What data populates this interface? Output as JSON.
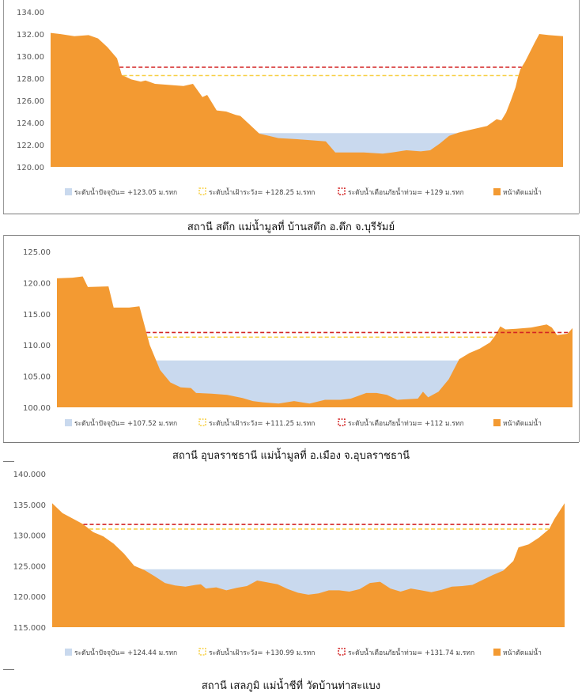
{
  "colors": {
    "terrain": "#f39a32",
    "water": "#c9d9ee",
    "warning": "#f7d046",
    "danger": "#d32424",
    "axis_text": "#555555"
  },
  "captions": [
    "สถานี สตึก แม่น้ำมูลที่ บ้านสตึก อ.ตึก จ.บุรีรัมย์",
    "สถานี อุบลราชธานี แม่น้ำมูลที่ อ.เมือง จ.อุบลราชธานี",
    "สถานี เสลภูมิ แม่น้ำชีที่ วัดบ้านท่าสะแบง"
  ],
  "chart_data": [
    {
      "type": "area",
      "yticks": [
        "134.00",
        "132.00",
        "130.00",
        "128.00",
        "126.00",
        "124.00",
        "122.00",
        "120.00"
      ],
      "ylim": [
        120,
        134
      ],
      "water_level": 123.05,
      "warning_level": 128.25,
      "danger_level": 129,
      "legend": [
        "ระดับน้ำปัจจุบัน= +123.05 ม.รทก",
        "ระดับน้ำเฝ้าระวัง= +128.25 ม.รทก",
        "ระดับน้ำเตือนภัยน้ำท่วม= +129 ม.รทก",
        "หน้าตัดแม่น้ำ"
      ],
      "profile": [
        [
          0,
          132.1
        ],
        [
          0.02,
          132.0
        ],
        [
          0.05,
          131.8
        ],
        [
          0.08,
          131.9
        ],
        [
          0.1,
          131.6
        ],
        [
          0.12,
          130.8
        ],
        [
          0.14,
          129.8
        ],
        [
          0.15,
          128.3
        ],
        [
          0.17,
          127.9
        ],
        [
          0.19,
          127.7
        ],
        [
          0.2,
          127.8
        ],
        [
          0.22,
          127.5
        ],
        [
          0.25,
          127.4
        ],
        [
          0.28,
          127.3
        ],
        [
          0.3,
          127.5
        ],
        [
          0.32,
          126.3
        ],
        [
          0.33,
          126.5
        ],
        [
          0.35,
          125.1
        ],
        [
          0.37,
          125.0
        ],
        [
          0.39,
          124.7
        ],
        [
          0.4,
          124.6
        ],
        [
          0.42,
          123.8
        ],
        [
          0.44,
          123.0
        ],
        [
          0.46,
          122.8
        ],
        [
          0.48,
          122.6
        ],
        [
          0.52,
          122.5
        ],
        [
          0.55,
          122.4
        ],
        [
          0.58,
          122.3
        ],
        [
          0.6,
          121.3
        ],
        [
          0.62,
          121.3
        ],
        [
          0.66,
          121.3
        ],
        [
          0.7,
          121.2
        ],
        [
          0.72,
          121.3
        ],
        [
          0.75,
          121.5
        ],
        [
          0.78,
          121.4
        ],
        [
          0.8,
          121.5
        ],
        [
          0.82,
          122.1
        ],
        [
          0.84,
          122.8
        ],
        [
          0.86,
          123.1
        ],
        [
          0.88,
          123.3
        ],
        [
          0.9,
          123.5
        ],
        [
          0.92,
          123.7
        ],
        [
          0.94,
          124.3
        ],
        [
          0.95,
          124.2
        ],
        [
          0.96,
          124.9
        ],
        [
          0.97,
          126.0
        ],
        [
          0.98,
          127.2
        ],
        [
          0.985,
          128.1
        ],
        [
          0.99,
          128.8
        ],
        [
          1.0,
          129.5
        ],
        [
          1.02,
          131.2
        ],
        [
          1.03,
          132.0
        ],
        [
          1.05,
          131.9
        ],
        [
          1.08,
          131.8
        ]
      ]
    },
    {
      "type": "area",
      "yticks": [
        "125.00",
        "120.00",
        "115.00",
        "110.00",
        "105.00",
        "100.00"
      ],
      "ylim": [
        100,
        125
      ],
      "water_level": 107.52,
      "warning_level": 111.25,
      "danger_level": 112,
      "legend": [
        "ระดับน้ำปัจจุบัน= +107.52 ม.รทก",
        "ระดับน้ำเฝ้าระวัง= +111.25 ม.รทก",
        "ระดับน้ำเตือนภัยน้ำท่วม= +112 ม.รทก",
        "หน้าตัดแม่น้ำ"
      ],
      "profile": [
        [
          0,
          120.7
        ],
        [
          0.03,
          120.8
        ],
        [
          0.05,
          121.0
        ],
        [
          0.06,
          119.3
        ],
        [
          0.1,
          119.4
        ],
        [
          0.11,
          116.0
        ],
        [
          0.14,
          116.0
        ],
        [
          0.16,
          116.2
        ],
        [
          0.18,
          110.0
        ],
        [
          0.2,
          106.0
        ],
        [
          0.22,
          104.0
        ],
        [
          0.24,
          103.2
        ],
        [
          0.26,
          103.1
        ],
        [
          0.27,
          102.3
        ],
        [
          0.3,
          102.2
        ],
        [
          0.33,
          102.0
        ],
        [
          0.36,
          101.5
        ],
        [
          0.38,
          101.0
        ],
        [
          0.4,
          100.8
        ],
        [
          0.43,
          100.6
        ],
        [
          0.46,
          101.0
        ],
        [
          0.49,
          100.6
        ],
        [
          0.52,
          101.2
        ],
        [
          0.55,
          101.2
        ],
        [
          0.57,
          101.4
        ],
        [
          0.6,
          102.3
        ],
        [
          0.62,
          102.3
        ],
        [
          0.64,
          102.0
        ],
        [
          0.66,
          101.2
        ],
        [
          0.7,
          101.4
        ],
        [
          0.71,
          102.5
        ],
        [
          0.72,
          101.6
        ],
        [
          0.74,
          102.5
        ],
        [
          0.76,
          104.5
        ],
        [
          0.78,
          107.7
        ],
        [
          0.8,
          108.7
        ],
        [
          0.82,
          109.4
        ],
        [
          0.84,
          110.4
        ],
        [
          0.85,
          111.5
        ],
        [
          0.86,
          113.0
        ],
        [
          0.87,
          112.5
        ],
        [
          0.89,
          112.6
        ],
        [
          0.92,
          112.8
        ],
        [
          0.95,
          113.3
        ],
        [
          0.96,
          112.8
        ],
        [
          0.97,
          111.6
        ],
        [
          0.99,
          111.8
        ],
        [
          1.0,
          112.7
        ]
      ]
    },
    {
      "type": "area",
      "yticks": [
        "140.000",
        "135.000",
        "130.000",
        "125.000",
        "120.000",
        "115.000"
      ],
      "ylim": [
        115,
        140
      ],
      "water_level": 124.44,
      "warning_level": 130.99,
      "danger_level": 131.74,
      "legend": [
        "ระดับน้ำปัจจุบัน= +124.44 ม.รทก",
        "ระดับน้ำเฝ้าระวัง= +130.99 ม.รทก",
        "ระดับน้ำเตือนภัยน้ำท่วม= +131.74 ม.รทก",
        "หน้าตัดแม่น้ำ"
      ],
      "profile": [
        [
          0,
          135.2
        ],
        [
          0.02,
          133.6
        ],
        [
          0.04,
          132.7
        ],
        [
          0.06,
          131.8
        ],
        [
          0.08,
          130.5
        ],
        [
          0.1,
          129.8
        ],
        [
          0.12,
          128.6
        ],
        [
          0.14,
          127.0
        ],
        [
          0.16,
          125.0
        ],
        [
          0.18,
          124.3
        ],
        [
          0.2,
          123.3
        ],
        [
          0.22,
          122.2
        ],
        [
          0.24,
          121.8
        ],
        [
          0.26,
          121.6
        ],
        [
          0.28,
          121.9
        ],
        [
          0.29,
          122.0
        ],
        [
          0.3,
          121.3
        ],
        [
          0.32,
          121.5
        ],
        [
          0.34,
          121.0
        ],
        [
          0.36,
          121.4
        ],
        [
          0.38,
          121.7
        ],
        [
          0.4,
          122.6
        ],
        [
          0.42,
          122.3
        ],
        [
          0.44,
          122.0
        ],
        [
          0.46,
          121.2
        ],
        [
          0.48,
          120.6
        ],
        [
          0.5,
          120.3
        ],
        [
          0.52,
          120.5
        ],
        [
          0.54,
          121.0
        ],
        [
          0.56,
          121.0
        ],
        [
          0.58,
          120.8
        ],
        [
          0.6,
          121.2
        ],
        [
          0.62,
          122.2
        ],
        [
          0.64,
          122.4
        ],
        [
          0.66,
          121.3
        ],
        [
          0.68,
          120.8
        ],
        [
          0.7,
          121.3
        ],
        [
          0.72,
          121.0
        ],
        [
          0.74,
          120.7
        ],
        [
          0.76,
          121.1
        ],
        [
          0.78,
          121.6
        ],
        [
          0.8,
          121.7
        ],
        [
          0.82,
          121.9
        ],
        [
          0.84,
          122.7
        ],
        [
          0.86,
          123.5
        ],
        [
          0.88,
          124.2
        ],
        [
          0.9,
          125.8
        ],
        [
          0.91,
          128.0
        ],
        [
          0.93,
          128.5
        ],
        [
          0.95,
          129.6
        ],
        [
          0.97,
          131.0
        ],
        [
          0.98,
          132.6
        ],
        [
          1.0,
          135.2
        ]
      ]
    }
  ]
}
